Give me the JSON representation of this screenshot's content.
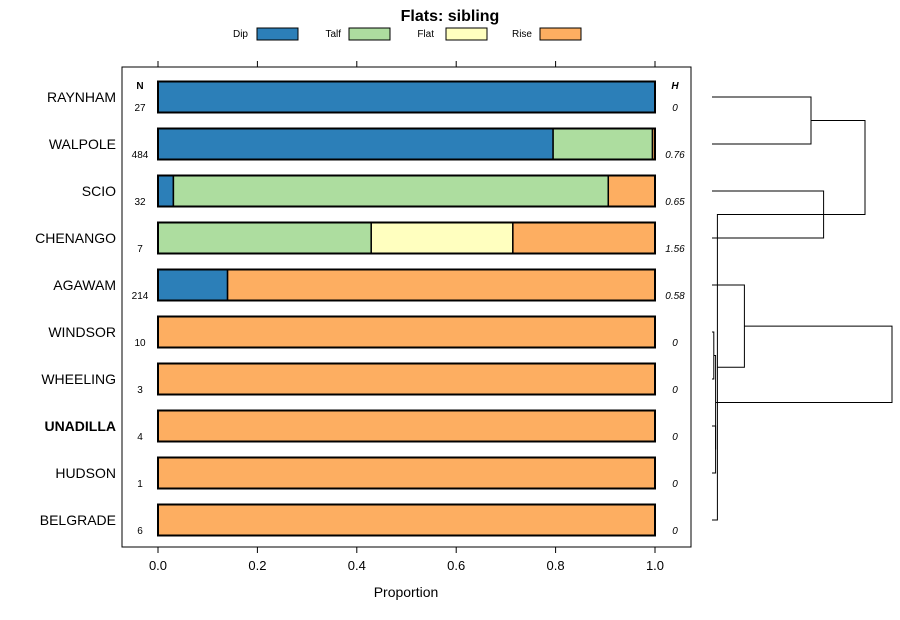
{
  "chart_data": {
    "type": "bar",
    "stacked": true,
    "orientation": "horizontal",
    "title": "Flats: sibling",
    "xlabel": "Proportion",
    "xlim": [
      0,
      1
    ],
    "xticks": [
      "0.0",
      "0.2",
      "0.4",
      "0.6",
      "0.8",
      "1.0"
    ],
    "xtick_values": [
      0,
      0.2,
      0.4,
      0.6,
      0.8,
      1.0
    ],
    "n_header": "N",
    "h_header": "H",
    "legend": [
      {
        "name": "Dip",
        "color": "#2c7fb8"
      },
      {
        "name": "Talf",
        "color": "#addd9f"
      },
      {
        "name": "Flat",
        "color": "#ffffbf"
      },
      {
        "name": "Rise",
        "color": "#fdae61"
      }
    ],
    "categories": [
      "RAYNHAM",
      "WALPOLE",
      "SCIO",
      "CHENANGO",
      "AGAWAM",
      "WINDSOR",
      "WHEELING",
      "UNADILLA",
      "HUDSON",
      "BELGRADE"
    ],
    "bold_categories": [
      "UNADILLA"
    ],
    "n": [
      "27",
      "484",
      "32",
      "7",
      "214",
      "10",
      "3",
      "4",
      "1",
      "6"
    ],
    "h": [
      "0",
      "0.76",
      "0.65",
      "1.56",
      "0.58",
      "0",
      "0",
      "0",
      "0",
      "0"
    ],
    "series": [
      {
        "name": "Dip",
        "values": [
          1.0,
          0.795,
          0.031,
          0.0,
          0.14,
          0,
          0,
          0,
          0,
          0
        ]
      },
      {
        "name": "Talf",
        "values": [
          0.0,
          0.2,
          0.875,
          0.429,
          0.0,
          0,
          0,
          0,
          0,
          0
        ]
      },
      {
        "name": "Flat",
        "values": [
          0.0,
          0.0,
          0.0,
          0.285,
          0.0,
          0,
          0,
          0,
          0,
          0
        ]
      },
      {
        "name": "Rise",
        "values": [
          0.0,
          0.005,
          0.094,
          0.286,
          0.86,
          1,
          1,
          1,
          1,
          1
        ]
      }
    ],
    "dendrogram": {
      "merges": [
        [
          0,
          1,
          0.55
        ],
        [
          2,
          3,
          0.62
        ],
        [
          5,
          6,
          0.01
        ],
        [
          7,
          8,
          0.02
        ],
        [
          11,
          9,
          0.03
        ],
        [
          12,
          13,
          0.02
        ],
        [
          4,
          14,
          0.18
        ],
        [
          10,
          11,
          0.85
        ],
        [
          15,
          16,
          1.0
        ]
      ]
    }
  }
}
